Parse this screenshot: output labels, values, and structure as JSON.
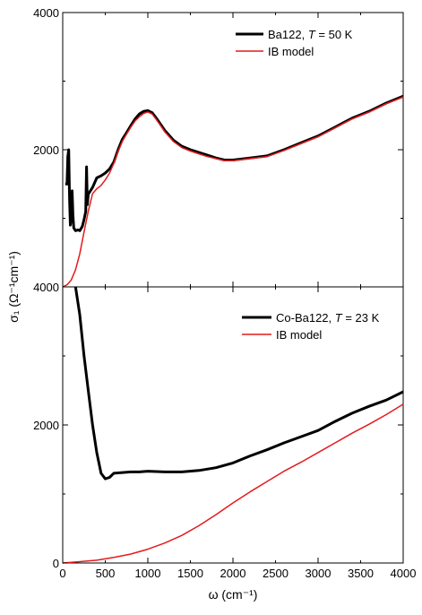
{
  "chart_data": [
    {
      "type": "line",
      "panel": "top",
      "title": "",
      "xlabel": "ω (cm⁻¹)",
      "ylabel": "σ₁ (Ω⁻¹cm⁻¹)",
      "xlim": [
        0,
        4000
      ],
      "ylim": [
        0,
        4000
      ],
      "x_ticks": [
        0,
        500,
        1000,
        1500,
        2000,
        2500,
        3000,
        3500,
        4000
      ],
      "y_tick_labels": [
        "2000",
        "4000"
      ],
      "y_tick_values": [
        2000,
        4000
      ],
      "grid": false,
      "legend_position": "top-right",
      "series": [
        {
          "name_parts": [
            "Ba122, ",
            "T",
            " = 50 K"
          ],
          "color": "#000000",
          "points": [
            [
              30,
              1500
            ],
            [
              50,
              1500
            ],
            [
              60,
              1900
            ],
            [
              70,
              2000
            ],
            [
              80,
              1300
            ],
            [
              90,
              900
            ],
            [
              100,
              1000
            ],
            [
              110,
              1400
            ],
            [
              120,
              1050
            ],
            [
              130,
              860
            ],
            [
              150,
              820
            ],
            [
              180,
              830
            ],
            [
              200,
              820
            ],
            [
              230,
              880
            ],
            [
              250,
              980
            ],
            [
              270,
              1100
            ],
            [
              280,
              1750
            ],
            [
              290,
              1200
            ],
            [
              300,
              1350
            ],
            [
              350,
              1450
            ],
            [
              400,
              1590
            ],
            [
              450,
              1620
            ],
            [
              500,
              1660
            ],
            [
              550,
              1720
            ],
            [
              600,
              1820
            ],
            [
              650,
              2000
            ],
            [
              700,
              2150
            ],
            [
              750,
              2250
            ],
            [
              800,
              2350
            ],
            [
              850,
              2450
            ],
            [
              900,
              2520
            ],
            [
              950,
              2560
            ],
            [
              1000,
              2570
            ],
            [
              1050,
              2540
            ],
            [
              1100,
              2460
            ],
            [
              1150,
              2370
            ],
            [
              1200,
              2280
            ],
            [
              1300,
              2140
            ],
            [
              1400,
              2050
            ],
            [
              1500,
              2000
            ],
            [
              1600,
              1960
            ],
            [
              1700,
              1920
            ],
            [
              1800,
              1880
            ],
            [
              1900,
              1850
            ],
            [
              2000,
              1850
            ],
            [
              2200,
              1880
            ],
            [
              2400,
              1910
            ],
            [
              2600,
              2000
            ],
            [
              2800,
              2100
            ],
            [
              3000,
              2200
            ],
            [
              3200,
              2330
            ],
            [
              3400,
              2460
            ],
            [
              3600,
              2560
            ],
            [
              3800,
              2680
            ],
            [
              4000,
              2780
            ]
          ]
        },
        {
          "name_parts": [
            "IB model"
          ],
          "color": "#e41a1c",
          "points": [
            [
              0,
              0
            ],
            [
              50,
              30
            ],
            [
              100,
              100
            ],
            [
              150,
              250
            ],
            [
              200,
              480
            ],
            [
              250,
              800
            ],
            [
              300,
              1100
            ],
            [
              350,
              1360
            ],
            [
              400,
              1430
            ],
            [
              450,
              1480
            ],
            [
              500,
              1560
            ],
            [
              550,
              1660
            ],
            [
              600,
              1800
            ],
            [
              650,
              1980
            ],
            [
              700,
              2120
            ],
            [
              750,
              2230
            ],
            [
              800,
              2330
            ],
            [
              850,
              2420
            ],
            [
              900,
              2480
            ],
            [
              950,
              2530
            ],
            [
              1000,
              2550
            ],
            [
              1050,
              2520
            ],
            [
              1100,
              2440
            ],
            [
              1150,
              2350
            ],
            [
              1200,
              2260
            ],
            [
              1300,
              2120
            ],
            [
              1400,
              2030
            ],
            [
              1500,
              1980
            ],
            [
              1600,
              1940
            ],
            [
              1700,
              1900
            ],
            [
              1800,
              1870
            ],
            [
              1900,
              1840
            ],
            [
              2000,
              1840
            ],
            [
              2200,
              1870
            ],
            [
              2400,
              1900
            ],
            [
              2600,
              1990
            ],
            [
              2800,
              2090
            ],
            [
              3000,
              2190
            ],
            [
              3200,
              2320
            ],
            [
              3400,
              2450
            ],
            [
              3600,
              2550
            ],
            [
              3800,
              2670
            ],
            [
              4000,
              2770
            ]
          ]
        }
      ]
    },
    {
      "type": "line",
      "panel": "bottom",
      "title": "",
      "xlabel": "ω (cm⁻¹)",
      "ylabel": "σ₁ (Ω⁻¹cm⁻¹)",
      "xlim": [
        0,
        4000
      ],
      "ylim": [
        0,
        4000
      ],
      "x_ticks": [
        0,
        500,
        1000,
        1500,
        2000,
        2500,
        3000,
        3500,
        4000
      ],
      "y_tick_labels": [
        "0",
        "2000",
        "4000"
      ],
      "y_tick_values": [
        0,
        2000,
        4000
      ],
      "grid": false,
      "legend_position": "top-right",
      "series": [
        {
          "name_parts": [
            "Co-Ba122, ",
            "T",
            " = 23 K"
          ],
          "color": "#000000",
          "points": [
            [
              150,
              4000
            ],
            [
              200,
              3600
            ],
            [
              250,
              3000
            ],
            [
              300,
              2500
            ],
            [
              350,
              2000
            ],
            [
              400,
              1600
            ],
            [
              450,
              1300
            ],
            [
              500,
              1220
            ],
            [
              550,
              1240
            ],
            [
              600,
              1300
            ],
            [
              700,
              1310
            ],
            [
              800,
              1320
            ],
            [
              900,
              1320
            ],
            [
              1000,
              1330
            ],
            [
              1200,
              1320
            ],
            [
              1400,
              1320
            ],
            [
              1600,
              1340
            ],
            [
              1800,
              1380
            ],
            [
              2000,
              1450
            ],
            [
              2200,
              1550
            ],
            [
              2400,
              1640
            ],
            [
              2600,
              1740
            ],
            [
              2800,
              1830
            ],
            [
              3000,
              1920
            ],
            [
              3200,
              2050
            ],
            [
              3400,
              2170
            ],
            [
              3600,
              2270
            ],
            [
              3800,
              2360
            ],
            [
              4000,
              2480
            ]
          ]
        },
        {
          "name_parts": [
            "IB model"
          ],
          "color": "#e41a1c",
          "points": [
            [
              0,
              0
            ],
            [
              200,
              20
            ],
            [
              400,
              40
            ],
            [
              600,
              80
            ],
            [
              800,
              130
            ],
            [
              1000,
              200
            ],
            [
              1200,
              290
            ],
            [
              1400,
              400
            ],
            [
              1600,
              540
            ],
            [
              1800,
              700
            ],
            [
              2000,
              870
            ],
            [
              2200,
              1030
            ],
            [
              2400,
              1180
            ],
            [
              2600,
              1330
            ],
            [
              2800,
              1460
            ],
            [
              3000,
              1600
            ],
            [
              3200,
              1740
            ],
            [
              3400,
              1880
            ],
            [
              3600,
              2010
            ],
            [
              3800,
              2150
            ],
            [
              4000,
              2300
            ]
          ]
        }
      ]
    }
  ]
}
